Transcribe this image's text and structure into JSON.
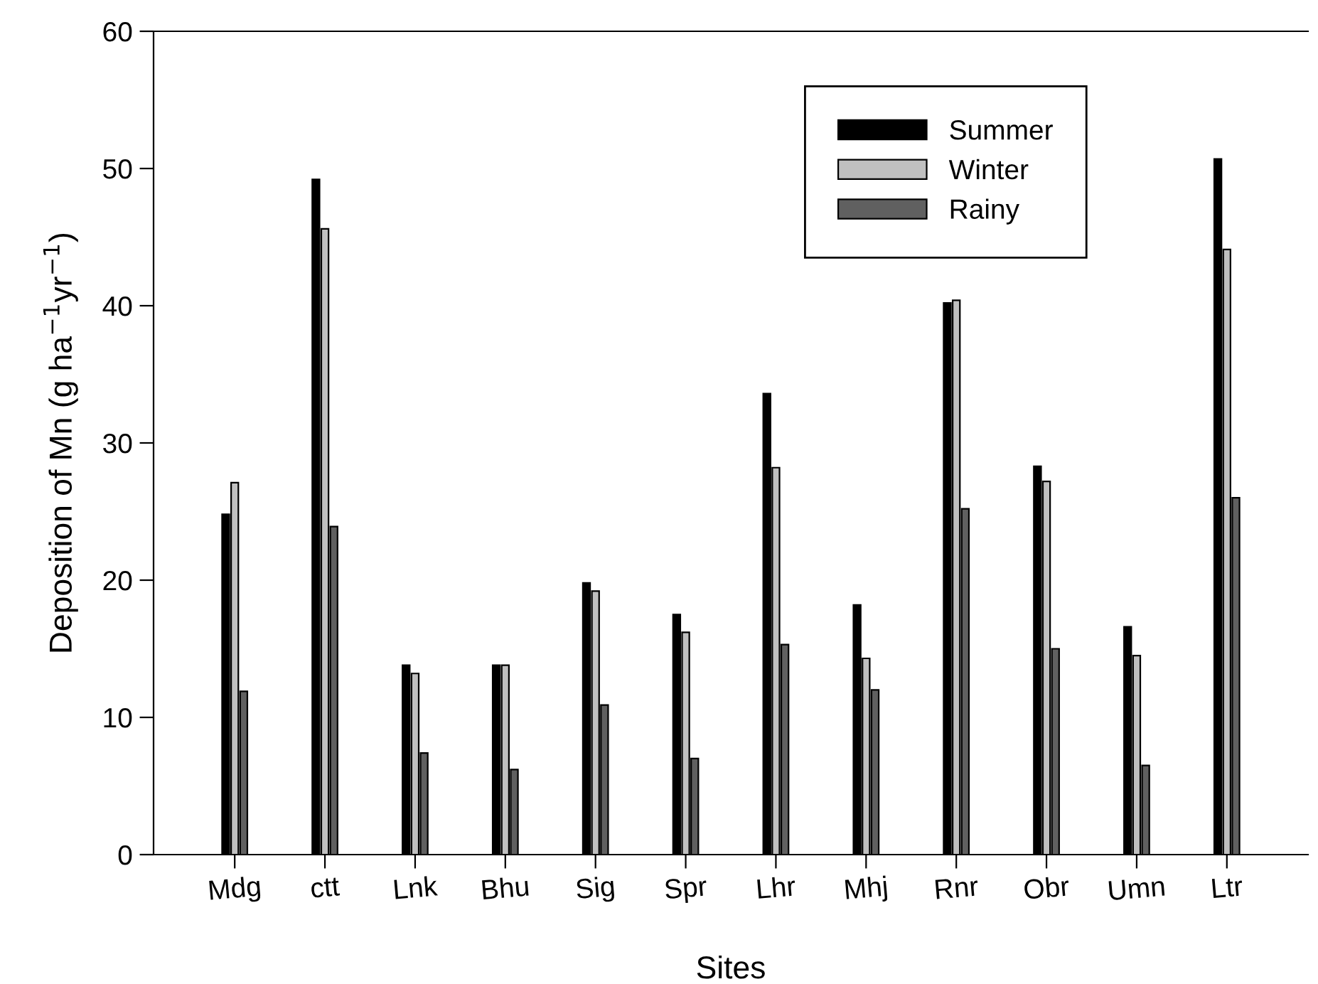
{
  "chart_data": {
    "type": "bar",
    "xlabel": "Sites",
    "ylabel": "Deposition of Mn (g ha$^{−1}$yr$^{−1}$)",
    "categories": [
      "Mdg",
      "ctt",
      "Lnk",
      "Bhu",
      "Sig",
      "Spr",
      "Lhr",
      "Mhj",
      "Rnr",
      "Obr",
      "Umn",
      "Ltr"
    ],
    "series": [
      {
        "name": "Summer",
        "color": "#000000",
        "values": [
          24.8,
          49.2,
          13.8,
          13.8,
          19.8,
          17.5,
          33.6,
          18.2,
          40.2,
          28.3,
          16.6,
          50.7
        ]
      },
      {
        "name": "Winter",
        "color": "#c0c0c0",
        "values": [
          27.1,
          45.6,
          13.2,
          13.8,
          19.2,
          16.2,
          28.2,
          14.3,
          40.4,
          27.2,
          14.5,
          44.1
        ]
      },
      {
        "name": "Rainy",
        "color": "#606060",
        "values": [
          11.9,
          23.9,
          7.4,
          6.2,
          10.9,
          7.0,
          15.3,
          12.0,
          25.2,
          15.0,
          6.5,
          26.0
        ]
      }
    ],
    "ylim": [
      0,
      60
    ],
    "yticks": [
      0,
      10,
      20,
      30,
      40,
      50,
      60
    ],
    "grid": false,
    "legend": "top right"
  }
}
